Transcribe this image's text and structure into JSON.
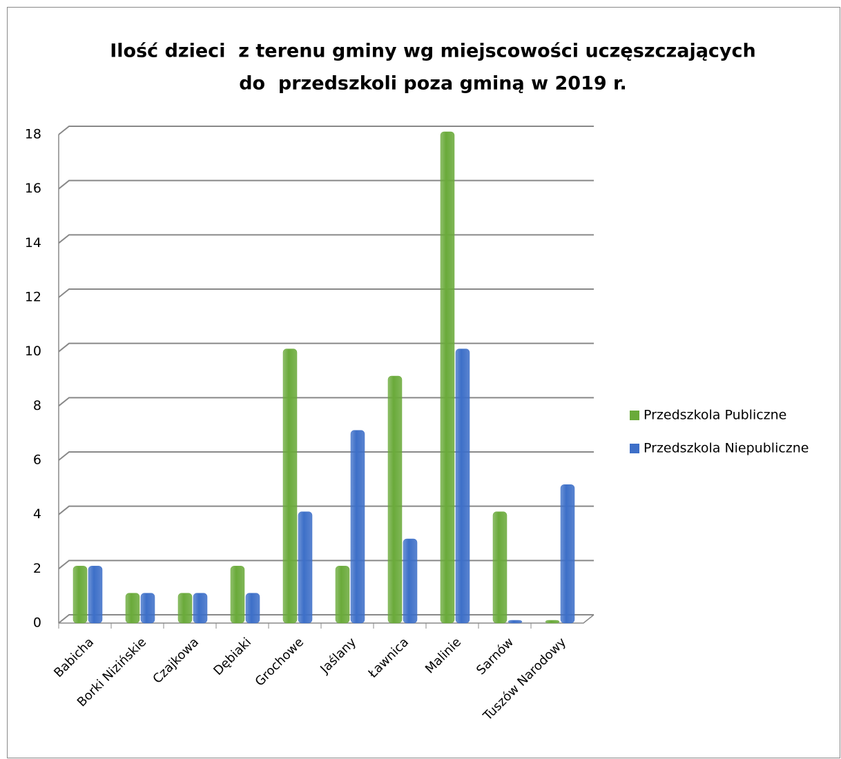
{
  "chart_data": {
    "type": "bar",
    "title": [
      "Ilość dzieci  z terenu gminy wg miejscowości uczęszczających",
      "do  przedszkoli poza gminą w 2019 r."
    ],
    "categories": [
      "Babicha",
      "Borki Nizińskie",
      "Czajkowa",
      "Dębiaki",
      "Grochowe",
      "Jaślany",
      "Ławnica",
      "Malinie",
      "Sarnów",
      "Tuszów Narodowy"
    ],
    "series": [
      {
        "name": "Przedszkola Publiczne",
        "color": "#6aaa3a",
        "values": [
          2,
          1,
          1,
          2,
          10,
          2,
          9,
          18,
          4,
          0
        ]
      },
      {
        "name": "Przedszkola Niepubliczne",
        "color": "#3d6fc8",
        "values": [
          2,
          1,
          1,
          1,
          4,
          7,
          3,
          10,
          0,
          5
        ]
      }
    ],
    "ylim": [
      0,
      18
    ],
    "yticks": [
      0,
      2,
      4,
      6,
      8,
      10,
      12,
      14,
      16,
      18
    ],
    "grid": true,
    "legend": "right"
  }
}
